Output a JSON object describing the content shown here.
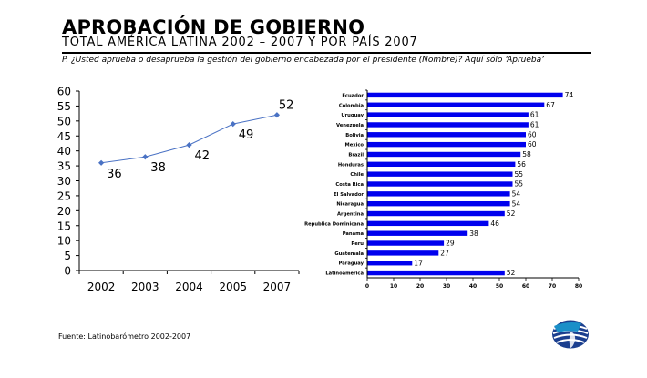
{
  "header": {
    "title": "APROBACIÓN DE GOBIERNO",
    "subtitle": "TOTAL AMÉRICA LATINA 2002 – 2007 Y POR PAÍS 2007",
    "question": "P. ¿Usted aprueba o desaprueba la gestión del gobierno encabezada por el presidente (Nombre)?   Aquí   sólo  ‘Aprueba’"
  },
  "footer": {
    "source": "Fuente: Latinobarómetro 2002-2007"
  },
  "logo": {
    "icon": "globe-logo-icon",
    "colors": [
      "#1a8fc8",
      "#1b3f8f"
    ]
  },
  "chart_data": [
    {
      "type": "line",
      "title": "",
      "xlabel": "",
      "ylabel": "",
      "x": [
        "2002",
        "2003",
        "2004",
        "2005",
        "2007"
      ],
      "series": [
        {
          "values": [
            36,
            38,
            42,
            49,
            52
          ]
        }
      ],
      "ylim": [
        0,
        60
      ],
      "yticks": [
        "0",
        "5",
        "10",
        "15",
        "20",
        "25",
        "30",
        "35",
        "40",
        "45",
        "50",
        "55",
        "60"
      ],
      "grid": false,
      "color": "#4a72c4",
      "data_labels": [
        "36",
        "38",
        "42",
        "49",
        "52"
      ]
    },
    {
      "type": "bar",
      "orientation": "horizontal",
      "title": "",
      "categories": [
        "Ecuador",
        "Colombia",
        "Uruguay",
        "Venezuela",
        "Bolivia",
        "Mexico",
        "Brazil",
        "Honduras",
        "Chile",
        "Costa Rica",
        "El Salvador",
        "Nicaragua",
        "Argentina",
        "Republica Dominicana",
        "Panama",
        "Peru",
        "Guatemala",
        "Paraguay",
        "Latinoamerica"
      ],
      "values": [
        74,
        67,
        61,
        61,
        60,
        60,
        58,
        56,
        55,
        55,
        54,
        54,
        52,
        46,
        38,
        29,
        27,
        17,
        52
      ],
      "data_labels": [
        "74",
        "67",
        "61",
        "61",
        "60",
        "60",
        "58",
        "56",
        "55",
        "55",
        "54",
        "54",
        "52",
        "46",
        "38",
        "29",
        "27",
        "17",
        "52"
      ],
      "xlim": [
        0,
        80
      ],
      "xticks": [
        "0",
        "10",
        "20",
        "30",
        "40",
        "50",
        "60",
        "70",
        "80"
      ],
      "grid": false,
      "color": "#0000ee"
    }
  ]
}
